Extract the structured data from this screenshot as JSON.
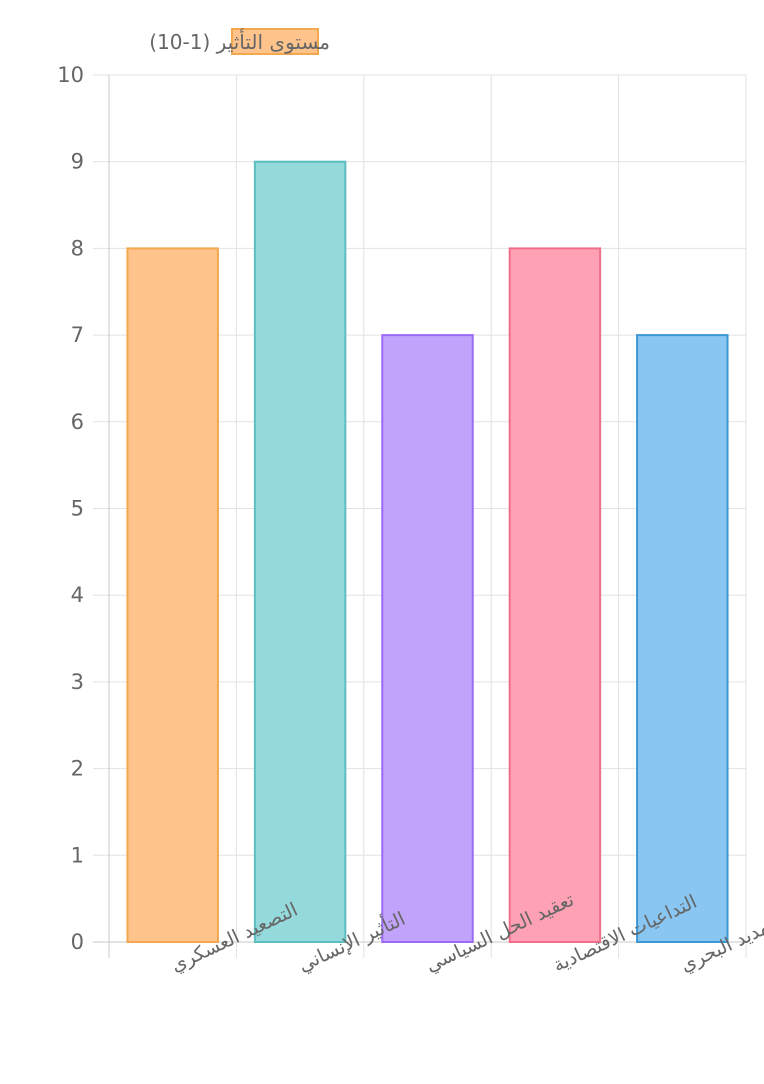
{
  "chart_data": {
    "type": "bar",
    "title": "",
    "xlabel": "",
    "ylabel": "",
    "categories": [
      "التصعيد العسكري",
      "التأثير الإنساني",
      "تعقيد الحل السياسي",
      "التداعيات الاقتصادية",
      "التهديد البحري"
    ],
    "series": [
      {
        "name": "مستوى التأثير (1-10)",
        "values": [
          8,
          9,
          7,
          8,
          7
        ]
      }
    ],
    "ylim": [
      0,
      10
    ],
    "yticks": [
      "0",
      "1",
      "2",
      "3",
      "4",
      "5",
      "6",
      "7",
      "8",
      "9",
      "10"
    ],
    "grid": true,
    "legend": "top-center",
    "colors": {
      "fills": [
        "#fec48c",
        "#94d9dc",
        "#c2a3fb",
        "#fea1b4",
        "#89c6f1"
      ],
      "strokes": [
        "#f3a74f",
        "#5bbfc0",
        "#9c6bf5",
        "#ef6f8b",
        "#3c97d7"
      ],
      "legend_fill": "#fec48c",
      "legend_stroke": "#f3a74f",
      "grid": "#e2e2e2",
      "axis": "#c8c8c8",
      "tick_text": "#666666"
    }
  }
}
